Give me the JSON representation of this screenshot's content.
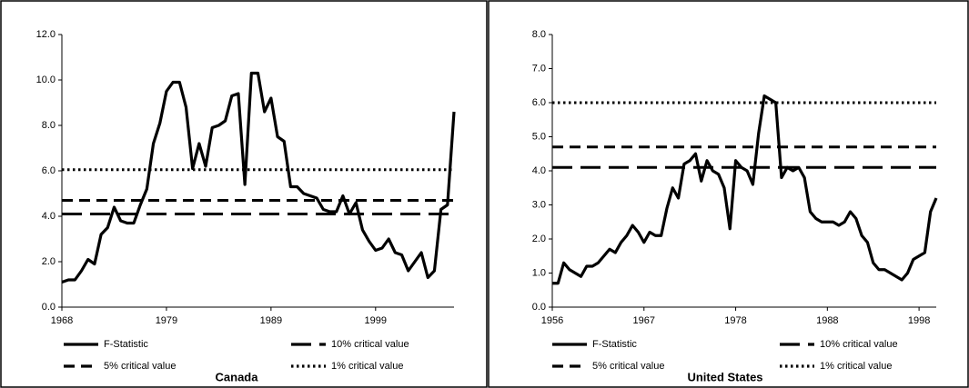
{
  "chart_data": [
    {
      "type": "line",
      "title": "Canada",
      "categories": [
        "1968",
        null,
        null,
        null,
        null,
        null,
        null,
        null,
        null,
        null,
        null,
        null,
        null,
        null,
        null,
        null,
        "1979",
        null,
        null,
        null,
        null,
        null,
        null,
        null,
        null,
        null,
        null,
        null,
        null,
        null,
        null,
        null,
        "1989",
        null,
        null,
        null,
        null,
        null,
        null,
        null,
        null,
        null,
        null,
        null,
        null,
        null,
        null,
        null,
        "1999",
        null,
        null,
        null,
        null,
        null,
        null,
        null,
        null,
        null,
        null,
        null,
        null
      ],
      "series": [
        {
          "name": "F-Statistic",
          "color": "#000000",
          "linestyle": "solid",
          "values": [
            1.1,
            1.2,
            1.2,
            1.6,
            2.1,
            1.9,
            3.2,
            3.5,
            4.4,
            3.8,
            3.7,
            3.7,
            4.5,
            5.2,
            7.2,
            8.1,
            9.5,
            9.9,
            9.9,
            8.8,
            6.1,
            7.2,
            6.2,
            7.9,
            8.0,
            8.2,
            9.3,
            9.4,
            5.4,
            10.3,
            10.3,
            8.6,
            9.2,
            7.5,
            7.3,
            5.3,
            5.3,
            5.0,
            4.9,
            4.8,
            4.3,
            4.2,
            4.2,
            4.9,
            4.1,
            4.6,
            3.4,
            2.9,
            2.5,
            2.6,
            3.0,
            2.4,
            2.3,
            1.6,
            2.0,
            2.4,
            1.3,
            1.6,
            4.3,
            4.5,
            8.6
          ]
        }
      ],
      "reference_lines": [
        {
          "name": "10% critical value",
          "value": 4.1,
          "color": "#000000",
          "linestyle": "longdash"
        },
        {
          "name": "5% critical value",
          "value": 4.7,
          "color": "#000000",
          "linestyle": "dash"
        },
        {
          "name": "1% critical value",
          "value": 6.05,
          "color": "#000000",
          "linestyle": "dot"
        }
      ],
      "ylim": [
        0,
        12
      ],
      "yticks": [
        {
          "value": 0,
          "label": "0.0"
        },
        {
          "value": 2,
          "label": "2.0"
        },
        {
          "value": 4,
          "label": "4.0"
        },
        {
          "value": 6,
          "label": "6.0"
        },
        {
          "value": 8,
          "label": "8.0"
        },
        {
          "value": 10,
          "label": "10.0"
        },
        {
          "value": 12,
          "label": "12.0"
        }
      ]
    },
    {
      "type": "line",
      "title": "United States",
      "categories": [
        "1956",
        null,
        null,
        null,
        null,
        null,
        null,
        null,
        null,
        null,
        null,
        null,
        null,
        null,
        null,
        null,
        "1967",
        null,
        null,
        null,
        null,
        null,
        null,
        null,
        null,
        null,
        null,
        null,
        null,
        null,
        null,
        null,
        "1978",
        null,
        null,
        null,
        null,
        null,
        null,
        null,
        null,
        null,
        null,
        null,
        null,
        null,
        null,
        null,
        "1988",
        null,
        null,
        null,
        null,
        null,
        null,
        null,
        null,
        null,
        null,
        null,
        null,
        null,
        null,
        null,
        "1998",
        null,
        null,
        null
      ],
      "series": [
        {
          "name": "F-Statistic",
          "color": "#000000",
          "linestyle": "solid",
          "values": [
            0.7,
            0.7,
            1.3,
            1.1,
            1.0,
            0.9,
            1.2,
            1.2,
            1.3,
            1.5,
            1.7,
            1.6,
            1.9,
            2.1,
            2.4,
            2.2,
            1.9,
            2.2,
            2.1,
            2.1,
            2.9,
            3.5,
            3.2,
            4.2,
            4.3,
            4.5,
            3.7,
            4.3,
            4.0,
            3.9,
            3.5,
            2.3,
            4.3,
            4.1,
            4.0,
            3.6,
            5.1,
            6.2,
            6.1,
            6.0,
            3.8,
            4.1,
            4.0,
            4.1,
            3.8,
            2.8,
            2.6,
            2.5,
            2.5,
            2.5,
            2.4,
            2.5,
            2.8,
            2.6,
            2.1,
            1.9,
            1.3,
            1.1,
            1.1,
            1.0,
            0.9,
            0.8,
            1.0,
            1.4,
            1.5,
            1.6,
            2.8,
            3.2
          ]
        }
      ],
      "reference_lines": [
        {
          "name": "10% critical value",
          "value": 4.1,
          "color": "#000000",
          "linestyle": "longdash"
        },
        {
          "name": "5% critical value",
          "value": 4.7,
          "color": "#000000",
          "linestyle": "dash"
        },
        {
          "name": "1% critical value",
          "value": 6.0,
          "color": "#000000",
          "linestyle": "dot"
        }
      ],
      "ylim": [
        0,
        8
      ],
      "yticks": [
        {
          "value": 0,
          "label": "0.0"
        },
        {
          "value": 1,
          "label": "1.0"
        },
        {
          "value": 2,
          "label": "2.0"
        },
        {
          "value": 3,
          "label": "3.0"
        },
        {
          "value": 4,
          "label": "4.0"
        },
        {
          "value": 5,
          "label": "5.0"
        },
        {
          "value": 6,
          "label": "6.0"
        },
        {
          "value": 7,
          "label": "7.0"
        },
        {
          "value": 8,
          "label": "8.0"
        }
      ]
    }
  ]
}
